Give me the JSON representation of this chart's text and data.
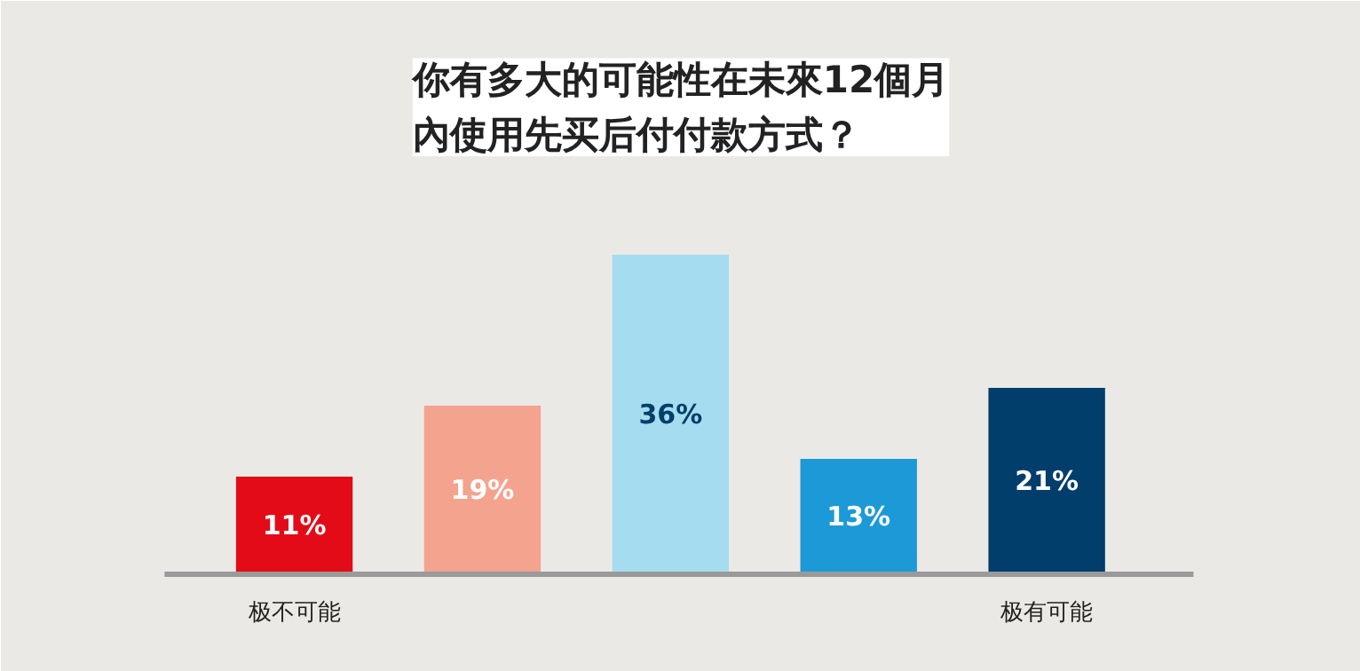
{
  "chart_data": {
    "type": "bar",
    "title": "你有多大的可能性在未來12個月內使用先买后付付款方式？",
    "categories": [
      "极不可能",
      null,
      null,
      null,
      "极有可能"
    ],
    "values": [
      11,
      19,
      36,
      13,
      21
    ],
    "colors": [
      "#e30b17",
      "#f4a38f",
      "#a6dcef",
      "#1b9ad7",
      "#023e6b"
    ],
    "data_labels": true,
    "value_labels": [
      "11%",
      "19%",
      "36%",
      "13%",
      "21%"
    ],
    "grid": false
  }
}
